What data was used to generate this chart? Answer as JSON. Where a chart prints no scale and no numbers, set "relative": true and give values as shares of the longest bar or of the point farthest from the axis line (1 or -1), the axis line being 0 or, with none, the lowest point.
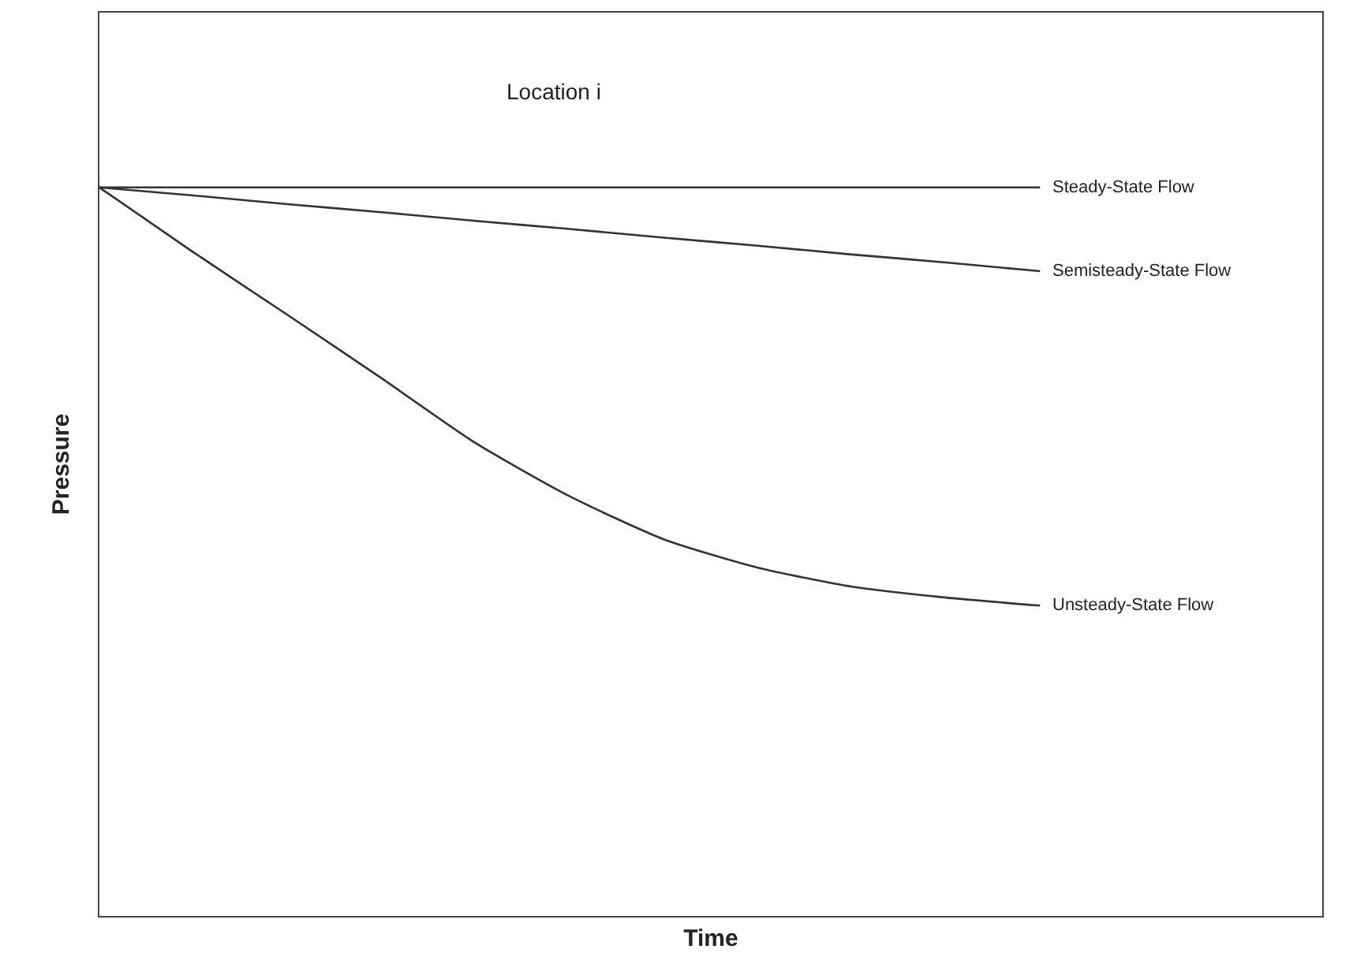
{
  "chart_data": {
    "type": "line",
    "xlabel": "Time",
    "ylabel": "Pressure",
    "relative": true,
    "legend": false,
    "marker": "none",
    "line_style": "solid",
    "annotations": [
      "Location i"
    ],
    "categories": [
      null,
      null,
      null,
      null,
      null,
      null,
      null,
      null,
      null,
      null,
      null,
      null,
      null,
      null
    ],
    "series": [
      {
        "name": "Steady-State Flow",
        "color": "#333333",
        "values": [
          1,
          1,
          1,
          1,
          1,
          1,
          1,
          1,
          1,
          1,
          1,
          null,
          null,
          null
        ]
      },
      {
        "name": "Semisteady-State Flow",
        "color": "#333333",
        "values": [
          1,
          0.989,
          0.977,
          0.966,
          0.954,
          0.943,
          0.931,
          0.92,
          0.908,
          0.897,
          0.885,
          null,
          null,
          null
        ]
      },
      {
        "name": "Unsteady-State Flow",
        "color": "#333333",
        "values": [
          1,
          0.911,
          0.825,
          0.738,
          0.649,
          0.576,
          0.517,
          0.478,
          0.452,
          0.437,
          0.426,
          null,
          null,
          null
        ]
      }
    ]
  }
}
